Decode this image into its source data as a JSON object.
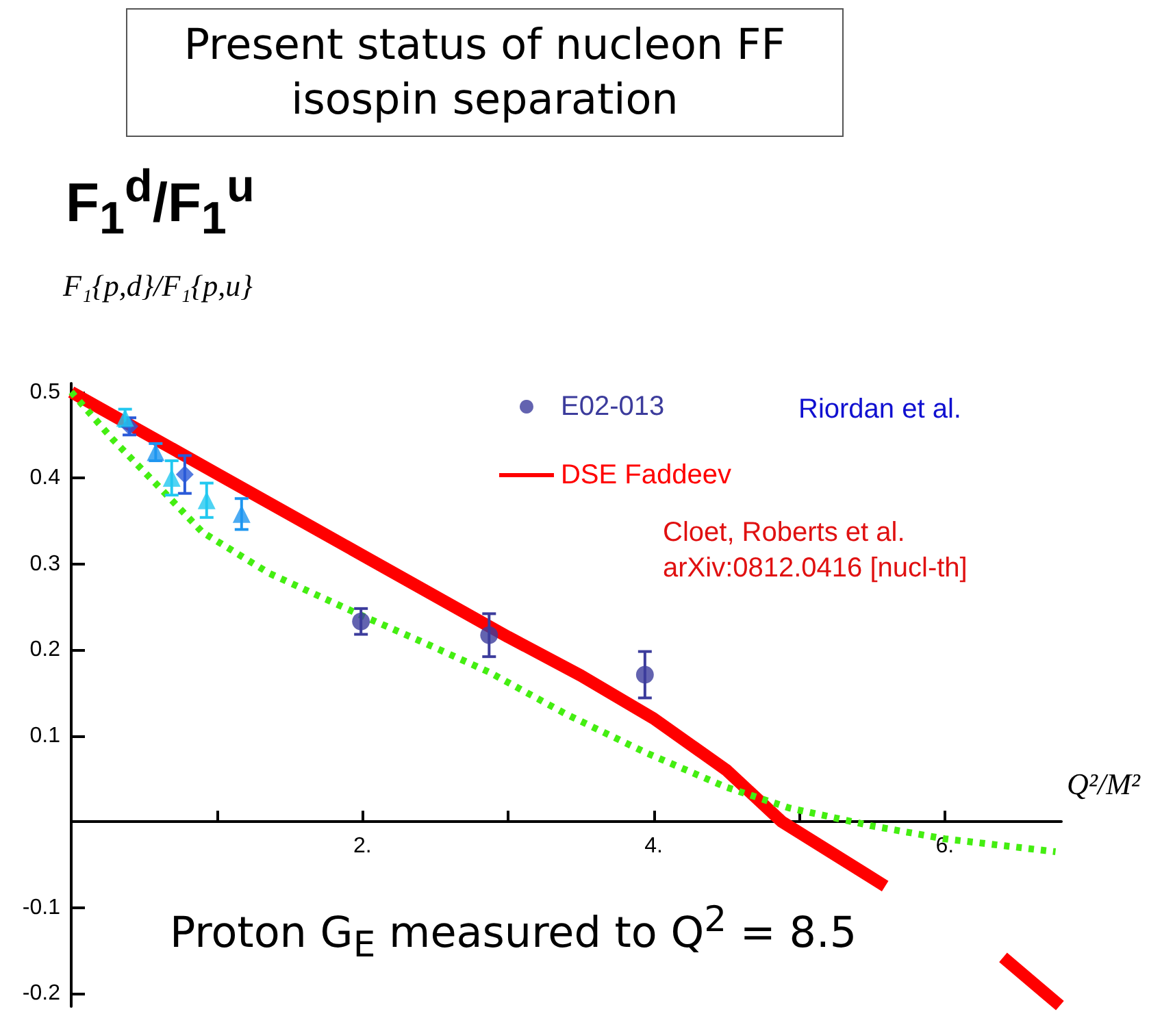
{
  "chart_data": {
    "type": "scatter",
    "title": "Present status of nucleon FF isospin separation",
    "subtitle": "F$_{1}$$^{d}$/F$_{1}$$^{u}$",
    "ylabel": "F₁{p,d}/F₁{p,u}",
    "xlabel": "Q²/M²",
    "xlim": [
      0,
      6.8
    ],
    "ylim": [
      -0.215,
      0.51
    ],
    "xticks": [
      {
        "value": 1,
        "label": null
      },
      {
        "value": 2,
        "label": "2."
      },
      {
        "value": 3,
        "label": null
      },
      {
        "value": 4,
        "label": "4."
      },
      {
        "value": 5,
        "label": null
      },
      {
        "value": 6,
        "label": "6."
      }
    ],
    "yticks": [
      -0.2,
      -0.1,
      0.1,
      0.2,
      0.3,
      0.4,
      0.5
    ],
    "grid": false,
    "legend": "top right",
    "annotations": [
      "Riordan et al.",
      "Cloet, Roberts et al.",
      "arXiv:0812.0416 [nucl-th]",
      "Proton G$_{E}$ measured to Q$^{2}$ = 8.5"
    ],
    "series": [
      {
        "name": "E02-013",
        "marker": "circle",
        "color": "#3c3c9c",
        "x": [
          1.99,
          2.87,
          3.94
        ],
        "values": [
          0.233,
          0.217,
          0.171
        ],
        "errors": [
          0.015,
          0.025,
          0.027
        ]
      },
      {
        "marker": "diamond",
        "color": "#2a5ad8",
        "x": [
          0.4,
          0.78
        ],
        "values": [
          0.46,
          0.404
        ],
        "errors": [
          0.01,
          0.022
        ]
      },
      {
        "marker": "triangle",
        "color": "#22c8f0",
        "x": [
          0.37,
          0.69,
          0.93
        ],
        "values": [
          0.47,
          0.4,
          0.374
        ],
        "errors": [
          0.01,
          0.02,
          0.02
        ]
      },
      {
        "marker": "triangle",
        "color": "#1e96f0",
        "x": [
          0.58,
          1.17
        ],
        "values": [
          0.43,
          0.358
        ],
        "errors": [
          0.01,
          0.018
        ]
      },
      {
        "name": "DSE Faddeev",
        "type": "line",
        "marker": "none",
        "line_style": "solid",
        "color": "#ff0000",
        "x": [
          0,
          1,
          2,
          3,
          3.5,
          4,
          4.5,
          4.88,
          5.59,
          6.0,
          6.4,
          6.79
        ],
        "values": [
          0.5,
          0.405,
          0.31,
          0.215,
          0.17,
          0.12,
          0.06,
          0,
          -0.075,
          null,
          -0.158,
          -0.214
        ]
      },
      {
        "type": "line",
        "marker": "none",
        "line_style": "dotted",
        "color": "#44ee11",
        "x": [
          0,
          0.29,
          0.6,
          0.9,
          1.36,
          1.98,
          2.4,
          2.87,
          3.4,
          3.95,
          4.5,
          4.93,
          5.5,
          6.0,
          6.76
        ],
        "values": [
          0.5,
          0.444,
          0.39,
          0.337,
          0.289,
          0.241,
          0.21,
          0.174,
          0.125,
          0.08,
          0.04,
          0.016,
          -0.005,
          -0.02,
          -0.035
        ]
      }
    ]
  }
}
